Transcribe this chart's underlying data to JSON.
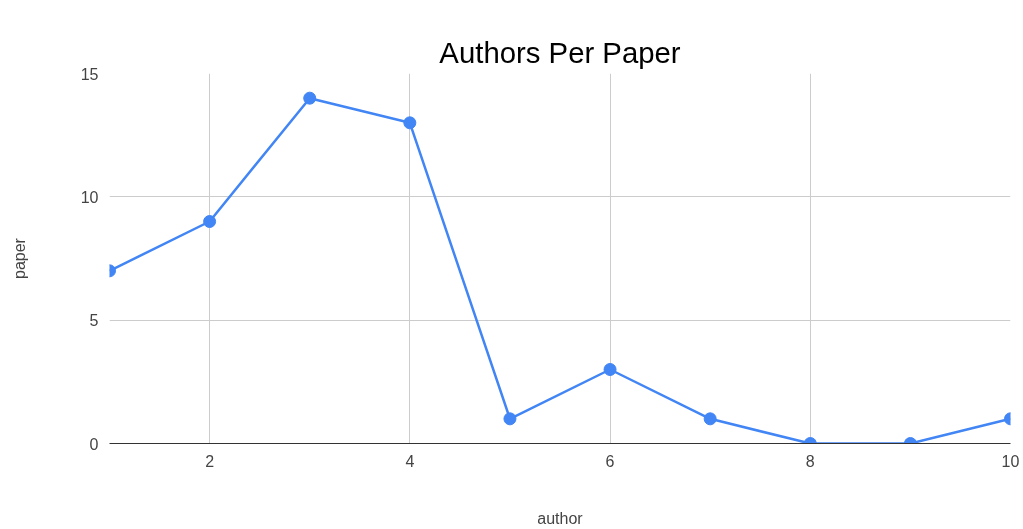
{
  "chart_data": {
    "type": "line",
    "title": "Authors Per Paper",
    "xlabel": "author",
    "ylabel": "paper",
    "x": [
      1,
      2,
      3,
      4,
      5,
      6,
      7,
      8,
      9,
      10
    ],
    "series": [
      {
        "color": "#4285f4",
        "values": [
          7,
          9,
          14,
          13,
          1,
          3,
          1,
          0,
          0,
          1
        ]
      }
    ],
    "xlim": [
      1,
      10
    ],
    "xticks": [
      2,
      4,
      6,
      8,
      10
    ],
    "ylim": [
      0,
      15
    ],
    "yticks": [
      0,
      5,
      10,
      15
    ],
    "grid": true,
    "marker": "circle",
    "line_style": "solid"
  }
}
